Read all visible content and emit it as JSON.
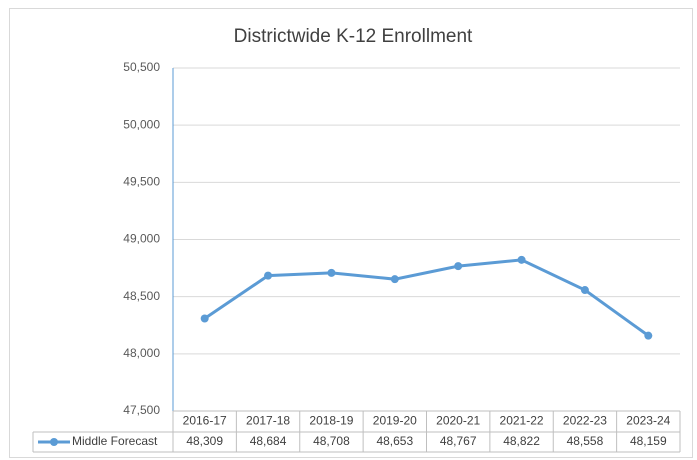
{
  "chart_data": {
    "type": "line",
    "title": "Districtwide K-12 Enrollment",
    "categories": [
      "2016-17",
      "2017-18",
      "2018-19",
      "2019-20",
      "2020-21",
      "2021-22",
      "2022-23",
      "2023-24"
    ],
    "series": [
      {
        "name": "Middle Forecast",
        "color": "#5b9bd5",
        "values": [
          48309,
          48684,
          48708,
          48653,
          48767,
          48822,
          48558,
          48159
        ],
        "value_labels": [
          "48,309",
          "48,684",
          "48,708",
          "48,653",
          "48,767",
          "48,822",
          "48,558",
          "48,159"
        ]
      }
    ],
    "ylim": [
      47500,
      50500
    ],
    "yticks": [
      {
        "value": 47500,
        "label": "47,500"
      },
      {
        "value": 48000,
        "label": "48,000"
      },
      {
        "value": 48500,
        "label": "48,500"
      },
      {
        "value": 49000,
        "label": "49,000"
      },
      {
        "value": 49500,
        "label": "49,500"
      },
      {
        "value": 50000,
        "label": "50,000"
      },
      {
        "value": 50500,
        "label": "50,500"
      }
    ],
    "grid": true
  }
}
